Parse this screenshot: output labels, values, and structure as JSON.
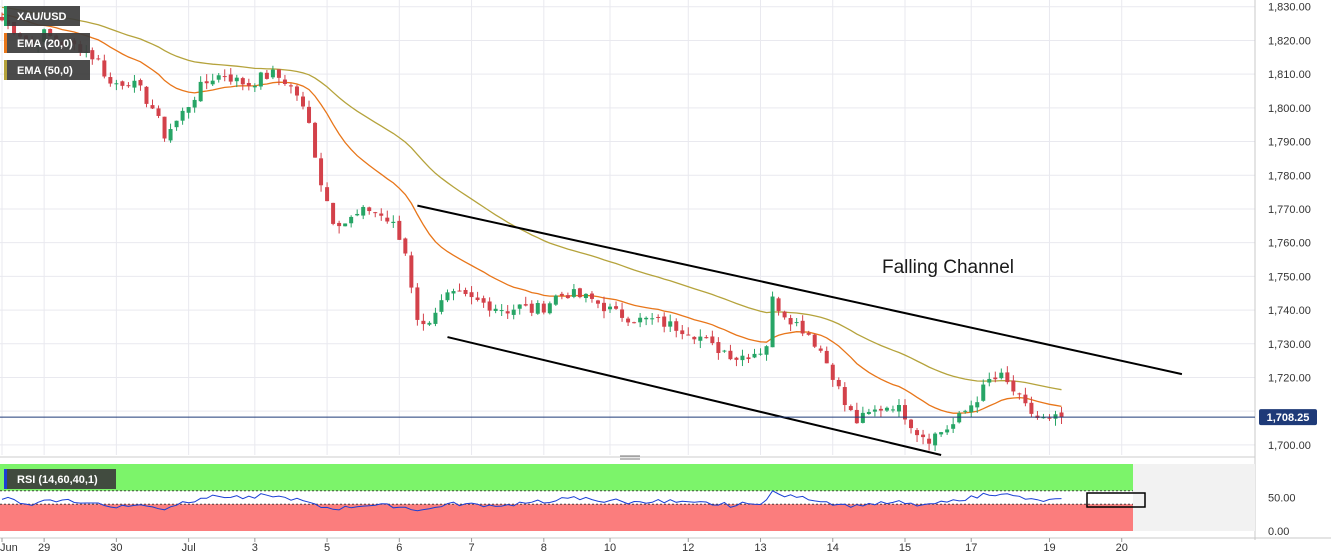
{
  "chart_data": {
    "type": "candlestick",
    "symbol": "XAU/USD",
    "indicators": {
      "ema20": {
        "label": "EMA (20,0)",
        "color": "#e8761a"
      },
      "ema50": {
        "label": "EMA (50,0)",
        "color": "#b5a33c"
      },
      "rsi": {
        "label": "RSI (14,60,40,1)",
        "color": "#1a3fd4",
        "upper": 60,
        "lower": 40,
        "upper_color": "#7cf46a",
        "lower_color": "#fb7d7d",
        "ticks": [
          "50.00",
          "0.00"
        ]
      }
    },
    "price_axis": {
      "min": 1697,
      "max": 1832,
      "ticks": [
        "1,830.00",
        "1,820.00",
        "1,810.00",
        "1,800.00",
        "1,790.00",
        "1,780.00",
        "1,770.00",
        "1,760.00",
        "1,750.00",
        "1,740.00",
        "1,730.00",
        "1,720.00",
        "1,710.00",
        "1,700.00"
      ],
      "tick_values": [
        1830,
        1820,
        1810,
        1800,
        1790,
        1780,
        1770,
        1760,
        1750,
        1740,
        1730,
        1720,
        1710,
        1700
      ]
    },
    "last_price": {
      "value": 1708.25,
      "label": "1,708.25",
      "color": "#1e3a78"
    },
    "x_labels": [
      "Jun",
      "29",
      "30",
      "Jul",
      "3",
      "5",
      "6",
      "7",
      "8",
      "10",
      "12",
      "13",
      "14",
      "15",
      "17",
      "19",
      "20"
    ],
    "close_anchors": [
      [
        0,
        1826
      ],
      [
        3,
        1822
      ],
      [
        5,
        1819
      ],
      [
        7,
        1822
      ],
      [
        10,
        1819
      ],
      [
        13,
        1818
      ],
      [
        16,
        1814
      ],
      [
        18,
        1807
      ],
      [
        21,
        1808
      ],
      [
        23,
        1805
      ],
      [
        25,
        1800
      ],
      [
        27,
        1792
      ],
      [
        29,
        1796
      ],
      [
        31,
        1801
      ],
      [
        33,
        1806
      ],
      [
        35,
        1809
      ],
      [
        37,
        1810
      ],
      [
        39,
        1808
      ],
      [
        41,
        1807
      ],
      [
        43,
        1809
      ],
      [
        45,
        1810
      ],
      [
        47,
        1808
      ],
      [
        49,
        1804
      ],
      [
        51,
        1795
      ],
      [
        53,
        1778
      ],
      [
        55,
        1767
      ],
      [
        57,
        1766
      ],
      [
        59,
        1768
      ],
      [
        61,
        1770
      ],
      [
        63,
        1768
      ],
      [
        65,
        1765
      ],
      [
        67,
        1757
      ],
      [
        69,
        1738
      ],
      [
        70,
        1735
      ],
      [
        72,
        1740
      ],
      [
        74,
        1744
      ],
      [
        76,
        1744
      ],
      [
        78,
        1743
      ],
      [
        80,
        1742
      ],
      [
        82,
        1741
      ],
      [
        84,
        1740
      ],
      [
        86,
        1741
      ],
      [
        88,
        1740
      ],
      [
        90,
        1741
      ],
      [
        92,
        1744
      ],
      [
        94,
        1745
      ],
      [
        96,
        1744
      ],
      [
        98,
        1743
      ],
      [
        100,
        1741
      ],
      [
        102,
        1739
      ],
      [
        104,
        1738
      ],
      [
        106,
        1737
      ],
      [
        108,
        1737
      ],
      [
        110,
        1736
      ],
      [
        112,
        1735
      ],
      [
        114,
        1734
      ],
      [
        116,
        1732
      ],
      [
        118,
        1729
      ],
      [
        120,
        1728
      ],
      [
        122,
        1726
      ],
      [
        124,
        1727
      ],
      [
        126,
        1728
      ],
      [
        127,
        1730
      ],
      [
        128,
        1743
      ],
      [
        130,
        1739
      ],
      [
        132,
        1736
      ],
      [
        134,
        1733
      ],
      [
        136,
        1728
      ],
      [
        138,
        1721
      ],
      [
        140,
        1712
      ],
      [
        142,
        1707
      ],
      [
        144,
        1709
      ],
      [
        146,
        1711
      ],
      [
        148,
        1712
      ],
      [
        150,
        1709
      ],
      [
        152,
        1704
      ],
      [
        154,
        1702
      ],
      [
        156,
        1704
      ],
      [
        158,
        1706
      ],
      [
        160,
        1710
      ],
      [
        162,
        1714
      ],
      [
        164,
        1719
      ],
      [
        166,
        1720
      ],
      [
        168,
        1716
      ],
      [
        170,
        1711
      ],
      [
        172,
        1708
      ],
      [
        174,
        1707
      ],
      [
        176,
        1708.25
      ]
    ],
    "date_ticks": [
      {
        "label": "Jun",
        "bar": 0
      },
      {
        "label": "29",
        "bar": 7
      },
      {
        "label": "30",
        "bar": 19
      },
      {
        "label": "Jul",
        "bar": 31
      },
      {
        "label": "3",
        "bar": 42
      },
      {
        "label": "5",
        "bar": 54
      },
      {
        "label": "6",
        "bar": 66
      },
      {
        "label": "7",
        "bar": 78
      },
      {
        "label": "8",
        "bar": 90
      },
      {
        "label": "10",
        "bar": 101
      },
      {
        "label": "12",
        "bar": 114
      },
      {
        "label": "13",
        "bar": 126
      },
      {
        "label": "14",
        "bar": 138
      },
      {
        "label": "15",
        "bar": 150
      },
      {
        "label": "17",
        "bar": 161
      },
      {
        "label": "19",
        "bar": 174
      },
      {
        "label": "20",
        "bar": 186
      }
    ],
    "channel": {
      "label": "Falling Channel",
      "upper": [
        [
          69,
          1771
        ],
        [
          196,
          1721
        ]
      ],
      "lower": [
        [
          74,
          1732
        ],
        [
          156,
          1697
        ]
      ]
    },
    "grid": true
  }
}
